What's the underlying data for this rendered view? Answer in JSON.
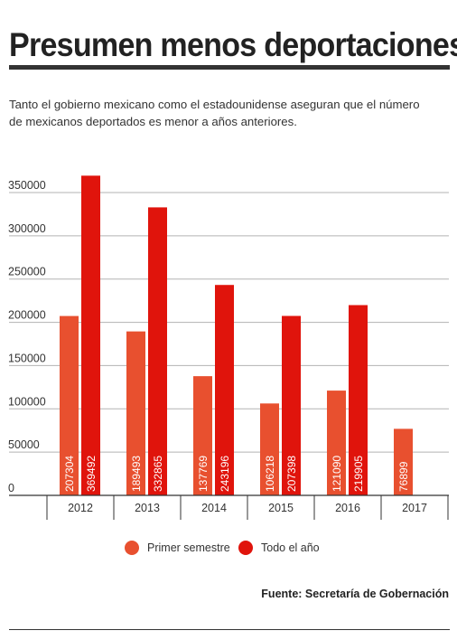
{
  "header": {
    "title": "Presumen menos deportaciones",
    "subtitle": "Tanto el gobierno mexicano como el estadounidense aseguran que el número de mexicanos deportados es menor a años anteriores."
  },
  "colors": {
    "primer_semestre": "#e8502f",
    "todo_el_ano": "#e0140c",
    "grid": "#b3b3b3",
    "axis": "#333333"
  },
  "legend": {
    "items": [
      {
        "label": "Primer semestre",
        "color": "#e8502f"
      },
      {
        "label": "Todo el año",
        "color": "#e0140c"
      }
    ]
  },
  "source": "Fuente: Secretaría de Gobernación",
  "chart_data": {
    "type": "bar",
    "categories": [
      "2012",
      "2013",
      "2014",
      "2015",
      "2016",
      "2017"
    ],
    "series": [
      {
        "name": "Primer semestre",
        "values": [
          207304,
          189493,
          137769,
          106218,
          121090,
          76899
        ]
      },
      {
        "name": "Todo el año",
        "values": [
          369492,
          332865,
          243196,
          207398,
          219905,
          null
        ]
      }
    ],
    "y_ticks": [
      "0",
      "50000",
      "100000",
      "150000",
      "200000",
      "250000",
      "300000",
      "350000"
    ],
    "ylim": [
      0,
      350000
    ],
    "grid": true,
    "legend_position": "bottom-center",
    "data_labels": "inside-bar-vertical"
  }
}
